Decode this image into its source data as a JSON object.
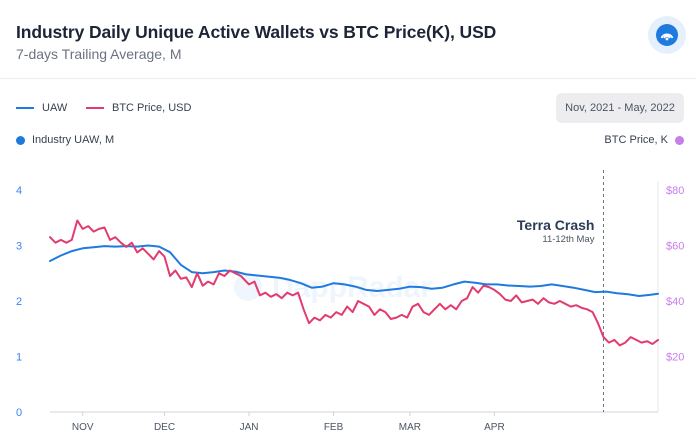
{
  "header": {
    "title": "Industry Daily Unique Active Wallets vs BTC Price(K), USD",
    "subtitle": "7-days Trailing Average, M"
  },
  "legend": {
    "uaw_label": "UAW",
    "btc_label": "BTC Price, USD"
  },
  "range_label": "Nov, 2021 - May, 2022",
  "axis_titles": {
    "left": "Industry UAW, M",
    "right": "BTC Price, K"
  },
  "annotation": {
    "title": "Terra Crash",
    "subtitle": "11-12th May",
    "date": "2022-05-11"
  },
  "watermark": "DappRadar",
  "colors": {
    "uaw": "#1f7ae0",
    "btc": "#e23c6e",
    "right_axis": "#c77dec",
    "left_axis": "#3b82f6"
  },
  "chart_data": {
    "type": "line",
    "title": "Industry Daily Unique Active Wallets vs BTC Price(K), USD",
    "subtitle": "7-days Trailing Average, M",
    "x_range": [
      "2021-10-20",
      "2022-05-31"
    ],
    "x_ticks": [
      {
        "label": "NOV",
        "date": "2021-11-01"
      },
      {
        "label": "DEC",
        "date": "2021-12-01"
      },
      {
        "label": "JAN",
        "date": "2022-01-01"
      },
      {
        "label": "FEB",
        "date": "2022-02-01"
      },
      {
        "label": "MAR",
        "date": "2022-03-01"
      },
      {
        "label": "APR",
        "date": "2022-04-01"
      }
    ],
    "y_left": {
      "label": "Industry UAW, M",
      "range": [
        0,
        4
      ],
      "ticks": [
        "0",
        "1",
        "2",
        "3",
        "4"
      ]
    },
    "y_right": {
      "label": "BTC Price, K",
      "range": [
        0,
        80
      ],
      "ticks": [
        "$20",
        "$40",
        "$60",
        "$80"
      ]
    },
    "grid": false,
    "series": [
      {
        "name": "UAW",
        "axis": "left",
        "points": [
          [
            "2021-10-20",
            2.72
          ],
          [
            "2021-10-24",
            2.82
          ],
          [
            "2021-10-28",
            2.9
          ],
          [
            "2021-11-01",
            2.95
          ],
          [
            "2021-11-05",
            2.97
          ],
          [
            "2021-11-09",
            2.99
          ],
          [
            "2021-11-13",
            2.98
          ],
          [
            "2021-11-17",
            2.99
          ],
          [
            "2021-11-21",
            2.98
          ],
          [
            "2021-11-25",
            3.0
          ],
          [
            "2021-11-29",
            2.98
          ],
          [
            "2021-12-03",
            2.88
          ],
          [
            "2021-12-07",
            2.65
          ],
          [
            "2021-12-11",
            2.52
          ],
          [
            "2021-12-15",
            2.5
          ],
          [
            "2021-12-19",
            2.52
          ],
          [
            "2021-12-23",
            2.55
          ],
          [
            "2021-12-27",
            2.53
          ],
          [
            "2021-12-31",
            2.48
          ],
          [
            "2022-01-04",
            2.46
          ],
          [
            "2022-01-08",
            2.44
          ],
          [
            "2022-01-12",
            2.42
          ],
          [
            "2022-01-16",
            2.38
          ],
          [
            "2022-01-20",
            2.32
          ],
          [
            "2022-01-24",
            2.24
          ],
          [
            "2022-01-28",
            2.26
          ],
          [
            "2022-02-01",
            2.32
          ],
          [
            "2022-02-05",
            2.3
          ],
          [
            "2022-02-09",
            2.26
          ],
          [
            "2022-02-13",
            2.2
          ],
          [
            "2022-02-17",
            2.18
          ],
          [
            "2022-02-21",
            2.2
          ],
          [
            "2022-02-25",
            2.22
          ],
          [
            "2022-03-01",
            2.26
          ],
          [
            "2022-03-05",
            2.25
          ],
          [
            "2022-03-09",
            2.22
          ],
          [
            "2022-03-13",
            2.24
          ],
          [
            "2022-03-17",
            2.3
          ],
          [
            "2022-03-21",
            2.35
          ],
          [
            "2022-03-25",
            2.33
          ],
          [
            "2022-03-29",
            2.3
          ],
          [
            "2022-04-02",
            2.3
          ],
          [
            "2022-04-06",
            2.28
          ],
          [
            "2022-04-10",
            2.27
          ],
          [
            "2022-04-14",
            2.26
          ],
          [
            "2022-04-18",
            2.27
          ],
          [
            "2022-04-22",
            2.3
          ],
          [
            "2022-04-26",
            2.27
          ],
          [
            "2022-04-30",
            2.24
          ],
          [
            "2022-05-04",
            2.2
          ],
          [
            "2022-05-08",
            2.16
          ],
          [
            "2022-05-12",
            2.17
          ],
          [
            "2022-05-16",
            2.14
          ],
          [
            "2022-05-20",
            2.12
          ],
          [
            "2022-05-24",
            2.09
          ],
          [
            "2022-05-28",
            2.11
          ],
          [
            "2022-05-31",
            2.13
          ]
        ]
      },
      {
        "name": "BTC Price, USD",
        "axis": "right",
        "points": [
          [
            "2021-10-20",
            63
          ],
          [
            "2021-10-22",
            61
          ],
          [
            "2021-10-24",
            62
          ],
          [
            "2021-10-26",
            61
          ],
          [
            "2021-10-28",
            62
          ],
          [
            "2021-10-30",
            69
          ],
          [
            "2021-11-01",
            66
          ],
          [
            "2021-11-03",
            67
          ],
          [
            "2021-11-05",
            65
          ],
          [
            "2021-11-07",
            66
          ],
          [
            "2021-11-09",
            66.5
          ],
          [
            "2021-11-11",
            62
          ],
          [
            "2021-11-13",
            63
          ],
          [
            "2021-11-15",
            61
          ],
          [
            "2021-11-17",
            59.5
          ],
          [
            "2021-11-19",
            61
          ],
          [
            "2021-11-21",
            57.5
          ],
          [
            "2021-11-23",
            59
          ],
          [
            "2021-11-25",
            57
          ],
          [
            "2021-11-27",
            55
          ],
          [
            "2021-11-29",
            58
          ],
          [
            "2021-12-01",
            56
          ],
          [
            "2021-12-03",
            49
          ],
          [
            "2021-12-05",
            51
          ],
          [
            "2021-12-07",
            48
          ],
          [
            "2021-12-09",
            48.5
          ],
          [
            "2021-12-11",
            45
          ],
          [
            "2021-12-13",
            50
          ],
          [
            "2021-12-15",
            45.5
          ],
          [
            "2021-12-17",
            47
          ],
          [
            "2021-12-19",
            46
          ],
          [
            "2021-12-21",
            50
          ],
          [
            "2021-12-23",
            49
          ],
          [
            "2021-12-25",
            51
          ],
          [
            "2021-12-27",
            50
          ],
          [
            "2021-12-29",
            49
          ],
          [
            "2022-01-01",
            46
          ],
          [
            "2022-01-03",
            47
          ],
          [
            "2022-01-05",
            42
          ],
          [
            "2022-01-07",
            43
          ],
          [
            "2022-01-09",
            41.5
          ],
          [
            "2022-01-11",
            42.5
          ],
          [
            "2022-01-13",
            41
          ],
          [
            "2022-01-15",
            43
          ],
          [
            "2022-01-17",
            42
          ],
          [
            "2022-01-19",
            43
          ],
          [
            "2022-01-21",
            37
          ],
          [
            "2022-01-23",
            32
          ],
          [
            "2022-01-25",
            34
          ],
          [
            "2022-01-27",
            33
          ],
          [
            "2022-01-29",
            35
          ],
          [
            "2022-01-31",
            34
          ],
          [
            "2022-02-02",
            36
          ],
          [
            "2022-02-04",
            35
          ],
          [
            "2022-02-06",
            38
          ],
          [
            "2022-02-08",
            36
          ],
          [
            "2022-02-10",
            40
          ],
          [
            "2022-02-12",
            39
          ],
          [
            "2022-02-14",
            38
          ],
          [
            "2022-02-16",
            35
          ],
          [
            "2022-02-18",
            37
          ],
          [
            "2022-02-20",
            36
          ],
          [
            "2022-02-22",
            33.5
          ],
          [
            "2022-02-24",
            34
          ],
          [
            "2022-02-26",
            35
          ],
          [
            "2022-02-28",
            34
          ],
          [
            "2022-03-02",
            38
          ],
          [
            "2022-03-04",
            39
          ],
          [
            "2022-03-06",
            36
          ],
          [
            "2022-03-08",
            35
          ],
          [
            "2022-03-10",
            37
          ],
          [
            "2022-03-12",
            39
          ],
          [
            "2022-03-14",
            37
          ],
          [
            "2022-03-16",
            38.5
          ],
          [
            "2022-03-18",
            37
          ],
          [
            "2022-03-20",
            40
          ],
          [
            "2022-03-22",
            41
          ],
          [
            "2022-03-24",
            45
          ],
          [
            "2022-03-26",
            43
          ],
          [
            "2022-03-28",
            45.5
          ],
          [
            "2022-03-30",
            45
          ],
          [
            "2022-04-01",
            44
          ],
          [
            "2022-04-03",
            42.5
          ],
          [
            "2022-04-05",
            40.5
          ],
          [
            "2022-04-07",
            40
          ],
          [
            "2022-04-09",
            42
          ],
          [
            "2022-04-11",
            39.5
          ],
          [
            "2022-04-13",
            40
          ],
          [
            "2022-04-15",
            40.5
          ],
          [
            "2022-04-17",
            39
          ],
          [
            "2022-04-19",
            41
          ],
          [
            "2022-04-21",
            39.5
          ],
          [
            "2022-04-23",
            39
          ],
          [
            "2022-04-25",
            40
          ],
          [
            "2022-04-27",
            39
          ],
          [
            "2022-04-29",
            38
          ],
          [
            "2022-05-01",
            38.5
          ],
          [
            "2022-05-03",
            37.5
          ],
          [
            "2022-05-05",
            37
          ],
          [
            "2022-05-07",
            36
          ],
          [
            "2022-05-09",
            32
          ],
          [
            "2022-05-11",
            27
          ],
          [
            "2022-05-13",
            25
          ],
          [
            "2022-05-15",
            26
          ],
          [
            "2022-05-17",
            24
          ],
          [
            "2022-05-19",
            25
          ],
          [
            "2022-05-21",
            27
          ],
          [
            "2022-05-23",
            26
          ],
          [
            "2022-05-25",
            25
          ],
          [
            "2022-05-27",
            25.5
          ],
          [
            "2022-05-29",
            24.5
          ],
          [
            "2022-05-31",
            26
          ]
        ]
      }
    ]
  }
}
